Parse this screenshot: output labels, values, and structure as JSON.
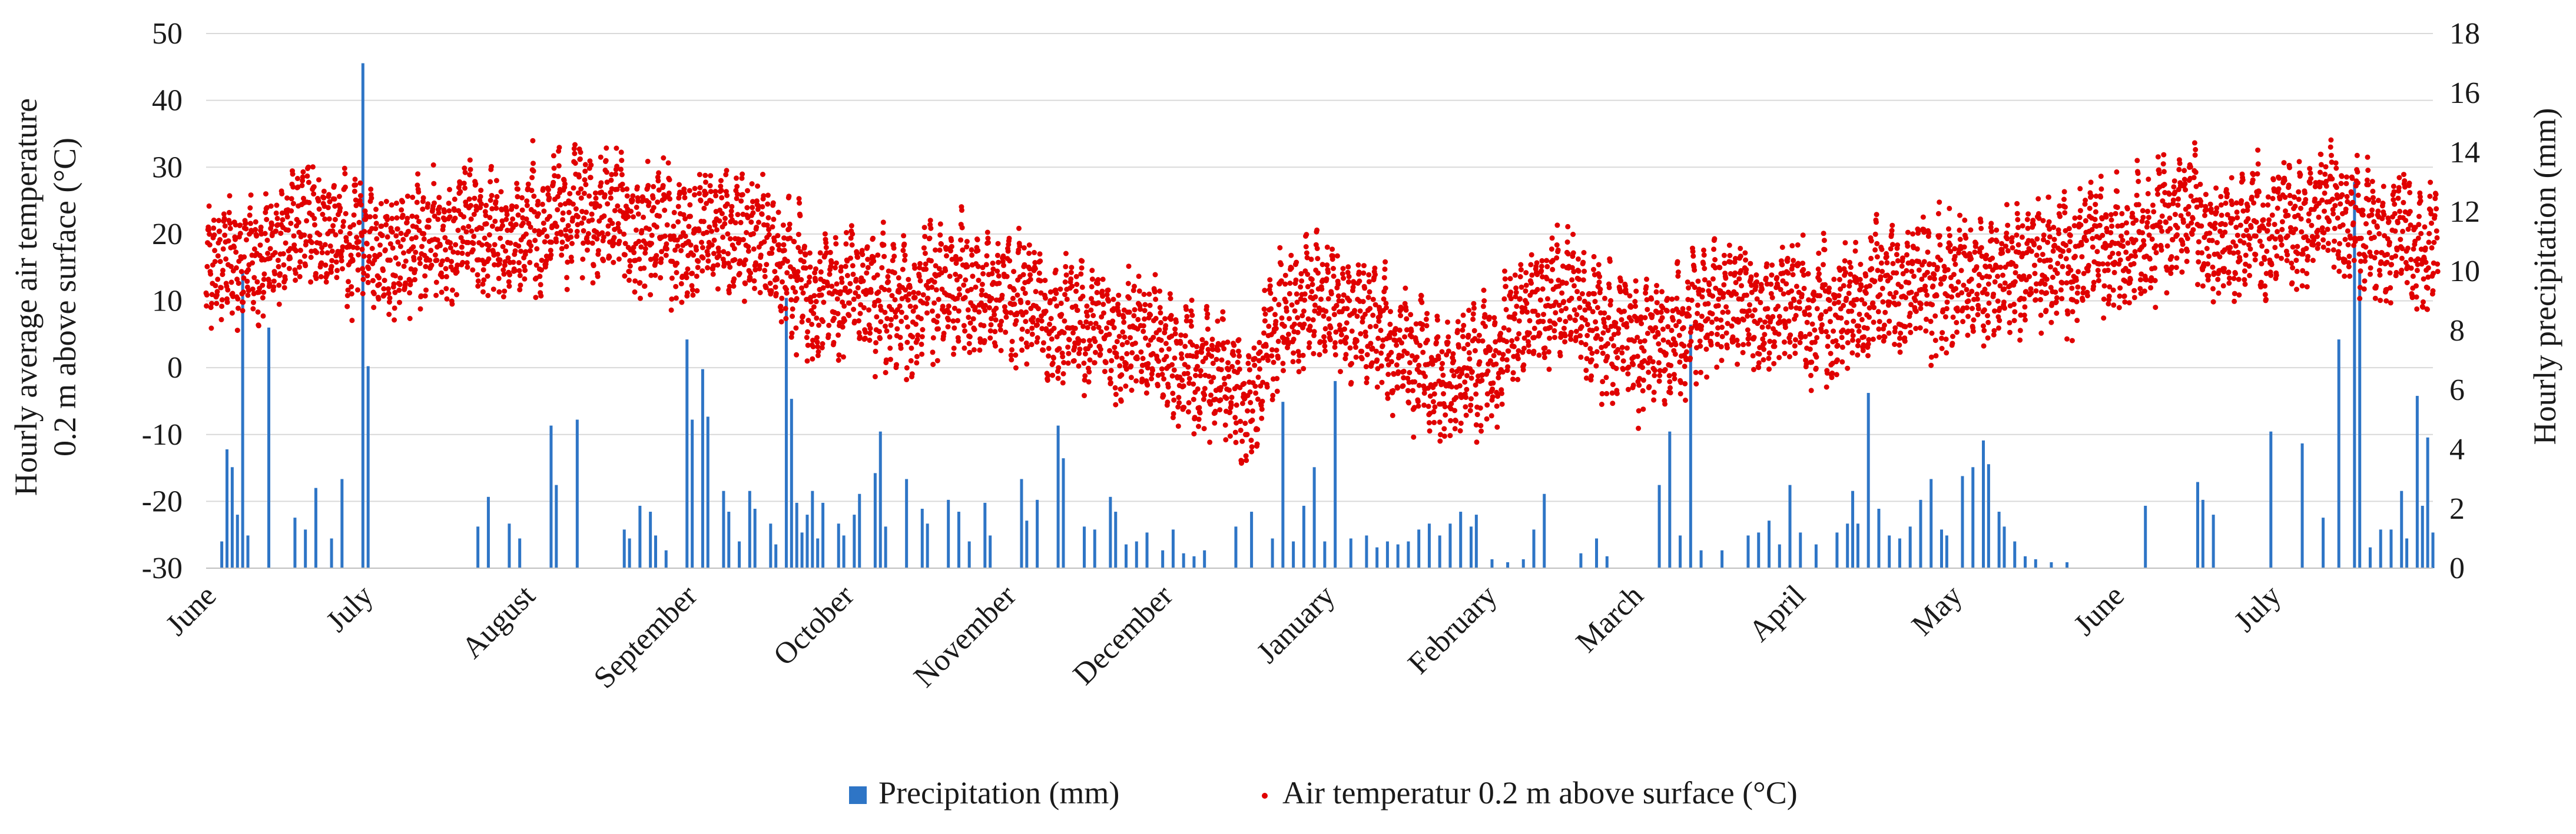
{
  "chart_data": {
    "type": "bar+scatter",
    "title": "",
    "y_left_label_line1": "Hourly average air temperature",
    "y_left_label_line2": "0.2 m above surface (°C)",
    "y_right_label": "Hourly precipitation  (mm)",
    "y_left_ticks": [
      "50",
      "40",
      "30",
      "20",
      "10",
      "0",
      "-10",
      "-20",
      "-30"
    ],
    "y_right_ticks": [
      "18",
      "16",
      "14",
      "12",
      "10",
      "8",
      "6",
      "4",
      "2",
      "0"
    ],
    "y_left_range": [
      -30,
      50
    ],
    "y_right_range": [
      0,
      18
    ],
    "grid": true,
    "legend_position": "bottom-center",
    "x_month_labels": [
      "June",
      "July",
      "August",
      "September",
      "October",
      "November",
      "December",
      "January",
      "February",
      "March",
      "April",
      "May",
      "June",
      "July"
    ],
    "x_month_days": [
      0,
      30,
      61,
      92,
      122,
      153,
      183,
      214,
      245,
      273,
      304,
      334,
      365,
      395
    ],
    "x_range_days": [
      0,
      426
    ],
    "colors": {
      "precip": "#2e75c6",
      "temp": "#e00000",
      "grid": "#d9d9d9"
    },
    "series": [
      {
        "name": "Precipitation (mm)",
        "kind": "bar",
        "axis": "right",
        "points": [
          [
            3,
            0.9
          ],
          [
            4,
            4.0
          ],
          [
            5,
            3.4
          ],
          [
            6,
            1.8
          ],
          [
            7,
            10.0
          ],
          [
            8,
            1.1
          ],
          [
            12,
            8.1
          ],
          [
            17,
            1.7
          ],
          [
            19,
            1.3
          ],
          [
            21,
            2.7
          ],
          [
            24,
            1.0
          ],
          [
            26,
            3.0
          ],
          [
            30,
            17.0
          ],
          [
            31,
            6.8
          ],
          [
            52,
            1.4
          ],
          [
            54,
            2.4
          ],
          [
            58,
            1.5
          ],
          [
            60,
            1.0
          ],
          [
            66,
            4.8
          ],
          [
            67,
            2.8
          ],
          [
            71,
            5.0
          ],
          [
            80,
            1.3
          ],
          [
            81,
            1.0
          ],
          [
            83,
            2.1
          ],
          [
            85,
            1.9
          ],
          [
            86,
            1.1
          ],
          [
            88,
            0.6
          ],
          [
            92,
            7.7
          ],
          [
            93,
            5.0
          ],
          [
            95,
            6.7
          ],
          [
            96,
            5.1
          ],
          [
            99,
            2.6
          ],
          [
            100,
            1.9
          ],
          [
            102,
            0.9
          ],
          [
            104,
            2.6
          ],
          [
            105,
            2.0
          ],
          [
            108,
            1.5
          ],
          [
            109,
            0.8
          ],
          [
            111,
            9.1
          ],
          [
            112,
            5.7
          ],
          [
            113,
            2.2
          ],
          [
            114,
            1.2
          ],
          [
            115,
            1.8
          ],
          [
            116,
            2.6
          ],
          [
            117,
            1.0
          ],
          [
            118,
            2.2
          ],
          [
            121,
            1.5
          ],
          [
            122,
            1.1
          ],
          [
            124,
            1.8
          ],
          [
            125,
            2.5
          ],
          [
            128,
            3.2
          ],
          [
            129,
            4.6
          ],
          [
            130,
            1.4
          ],
          [
            134,
            3.0
          ],
          [
            137,
            2.0
          ],
          [
            138,
            1.5
          ],
          [
            142,
            2.3
          ],
          [
            144,
            1.9
          ],
          [
            146,
            0.9
          ],
          [
            149,
            2.2
          ],
          [
            150,
            1.1
          ],
          [
            156,
            3.0
          ],
          [
            157,
            1.6
          ],
          [
            159,
            2.3
          ],
          [
            163,
            4.8
          ],
          [
            164,
            3.7
          ],
          [
            168,
            1.4
          ],
          [
            170,
            1.3
          ],
          [
            173,
            2.4
          ],
          [
            174,
            1.9
          ],
          [
            176,
            0.8
          ],
          [
            178,
            0.9
          ],
          [
            180,
            1.2
          ],
          [
            183,
            0.6
          ],
          [
            185,
            1.3
          ],
          [
            187,
            0.5
          ],
          [
            189,
            0.4
          ],
          [
            191,
            0.6
          ],
          [
            197,
            1.4
          ],
          [
            200,
            1.9
          ],
          [
            204,
            1.0
          ],
          [
            206,
            5.6
          ],
          [
            208,
            0.9
          ],
          [
            210,
            2.1
          ],
          [
            212,
            3.4
          ],
          [
            214,
            0.9
          ],
          [
            216,
            6.3
          ],
          [
            219,
            1.0
          ],
          [
            222,
            1.1
          ],
          [
            224,
            0.7
          ],
          [
            226,
            0.9
          ],
          [
            228,
            0.8
          ],
          [
            230,
            0.9
          ],
          [
            232,
            1.3
          ],
          [
            234,
            1.5
          ],
          [
            236,
            1.1
          ],
          [
            238,
            1.5
          ],
          [
            240,
            1.9
          ],
          [
            242,
            1.4
          ],
          [
            243,
            1.8
          ],
          [
            246,
            0.3
          ],
          [
            249,
            0.2
          ],
          [
            252,
            0.3
          ],
          [
            254,
            1.3
          ],
          [
            256,
            2.5
          ],
          [
            263,
            0.5
          ],
          [
            266,
            1.0
          ],
          [
            268,
            0.4
          ],
          [
            278,
            2.8
          ],
          [
            280,
            4.6
          ],
          [
            282,
            1.1
          ],
          [
            284,
            8.2
          ],
          [
            286,
            0.6
          ],
          [
            290,
            0.6
          ],
          [
            295,
            1.1
          ],
          [
            297,
            1.2
          ],
          [
            299,
            1.6
          ],
          [
            301,
            0.8
          ],
          [
            303,
            2.8
          ],
          [
            305,
            1.2
          ],
          [
            308,
            0.8
          ],
          [
            312,
            1.2
          ],
          [
            314,
            1.5
          ],
          [
            315,
            2.6
          ],
          [
            316,
            1.5
          ],
          [
            318,
            5.9
          ],
          [
            320,
            2.0
          ],
          [
            322,
            1.1
          ],
          [
            324,
            1.0
          ],
          [
            326,
            1.4
          ],
          [
            328,
            2.3
          ],
          [
            330,
            3.0
          ],
          [
            332,
            1.3
          ],
          [
            333,
            1.1
          ],
          [
            336,
            3.1
          ],
          [
            338,
            3.4
          ],
          [
            340,
            4.3
          ],
          [
            341,
            3.5
          ],
          [
            343,
            1.9
          ],
          [
            344,
            1.4
          ],
          [
            346,
            0.9
          ],
          [
            348,
            0.4
          ],
          [
            350,
            0.3
          ],
          [
            353,
            0.2
          ],
          [
            356,
            0.2
          ],
          [
            371,
            2.1
          ],
          [
            381,
            2.9
          ],
          [
            382,
            2.3
          ],
          [
            384,
            1.8
          ],
          [
            395,
            4.6
          ],
          [
            401,
            4.2
          ],
          [
            405,
            1.7
          ],
          [
            408,
            7.7
          ],
          [
            411,
            13.0
          ],
          [
            412,
            10.0
          ],
          [
            414,
            0.7
          ],
          [
            416,
            1.3
          ],
          [
            418,
            1.3
          ],
          [
            420,
            2.6
          ],
          [
            421,
            1.0
          ],
          [
            423,
            5.8
          ],
          [
            424,
            2.1
          ],
          [
            425,
            4.4
          ],
          [
            426,
            1.2
          ]
        ]
      },
      {
        "name": "Air temperatur 0.2 m above surface (°C)",
        "kind": "scatter",
        "axis": "left",
        "daily_mean": [
          [
            0,
            15.0
          ],
          [
            5,
            15.5
          ],
          [
            10,
            17.5
          ],
          [
            15,
            20.0
          ],
          [
            20,
            21.5
          ],
          [
            25,
            19.5
          ],
          [
            30,
            17.5
          ],
          [
            35,
            17.0
          ],
          [
            40,
            18.5
          ],
          [
            45,
            19.0
          ],
          [
            50,
            20.5
          ],
          [
            55,
            21.5
          ],
          [
            60,
            20.5
          ],
          [
            65,
            21.0
          ],
          [
            70,
            22.5
          ],
          [
            75,
            23.5
          ],
          [
            80,
            22.0
          ],
          [
            85,
            20.5
          ],
          [
            90,
            19.0
          ],
          [
            95,
            19.5
          ],
          [
            100,
            18.5
          ],
          [
            105,
            18.0
          ],
          [
            110,
            16.0
          ],
          [
            115,
            12.0
          ],
          [
            120,
            10.5
          ],
          [
            125,
            11.0
          ],
          [
            130,
            10.5
          ],
          [
            135,
            11.0
          ],
          [
            140,
            12.5
          ],
          [
            145,
            11.5
          ],
          [
            150,
            10.5
          ],
          [
            155,
            10.0
          ],
          [
            160,
            8.5
          ],
          [
            165,
            6.5
          ],
          [
            170,
            5.5
          ],
          [
            175,
            4.5
          ],
          [
            180,
            3.5
          ],
          [
            185,
            1.5
          ],
          [
            190,
            0.0
          ],
          [
            195,
            -3.0
          ],
          [
            198,
            -7.0
          ],
          [
            201,
            -1.0
          ],
          [
            205,
            8.0
          ],
          [
            210,
            10.0
          ],
          [
            215,
            9.5
          ],
          [
            220,
            8.0
          ],
          [
            225,
            6.0
          ],
          [
            230,
            3.0
          ],
          [
            235,
            -1.0
          ],
          [
            240,
            -2.0
          ],
          [
            245,
            1.0
          ],
          [
            250,
            4.0
          ],
          [
            255,
            7.0
          ],
          [
            260,
            9.5
          ],
          [
            265,
            6.0
          ],
          [
            270,
            4.5
          ],
          [
            275,
            3.0
          ],
          [
            280,
            5.0
          ],
          [
            285,
            8.0
          ],
          [
            290,
            10.5
          ],
          [
            295,
            9.0
          ],
          [
            300,
            8.5
          ],
          [
            305,
            7.5
          ],
          [
            310,
            8.5
          ],
          [
            315,
            10.0
          ],
          [
            320,
            12.0
          ],
          [
            325,
            12.5
          ],
          [
            330,
            12.5
          ],
          [
            335,
            13.0
          ],
          [
            340,
            14.0
          ],
          [
            345,
            14.0
          ],
          [
            350,
            14.5
          ],
          [
            355,
            16.0
          ],
          [
            360,
            18.0
          ],
          [
            365,
            19.0
          ],
          [
            370,
            19.5
          ],
          [
            375,
            21.0
          ],
          [
            380,
            22.5
          ],
          [
            385,
            21.5
          ],
          [
            390,
            20.0
          ],
          [
            395,
            20.5
          ],
          [
            400,
            22.0
          ],
          [
            405,
            23.5
          ],
          [
            410,
            23.0
          ],
          [
            415,
            21.0
          ],
          [
            420,
            18.5
          ],
          [
            426,
            17.5
          ]
        ],
        "diurnal_amplitude_c": 7,
        "samples_per_day": 14
      }
    ]
  },
  "legend": {
    "precip_label": "Precipitation (mm)",
    "temp_label": "Air temperatur 0.2 m above surface (°C)"
  }
}
